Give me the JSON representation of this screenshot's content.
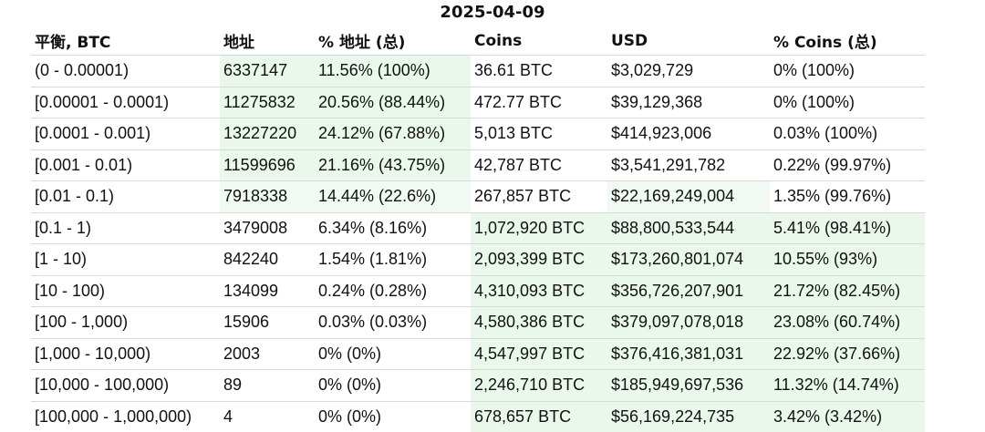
{
  "title": "2025-04-09",
  "headers": [
    "平衡, BTC",
    "地址",
    "% 地址 (总)",
    "Coins",
    "USD",
    "% Coins (总)"
  ],
  "rows": [
    [
      "(0 - 0.00001)",
      "6337147",
      "11.56% (100%)",
      "36.61 BTC",
      "$3,029,729",
      "0% (100%)"
    ],
    [
      "[0.00001 - 0.0001)",
      "11275832",
      "20.56% (88.44%)",
      "472.77 BTC",
      "$39,129,368",
      "0% (100%)"
    ],
    [
      "[0.0001 - 0.001)",
      "13227220",
      "24.12% (67.88%)",
      "5,013 BTC",
      "$414,923,006",
      "0.03% (100%)"
    ],
    [
      "[0.001 - 0.01)",
      "11599696",
      "21.16% (43.75%)",
      "42,787 BTC",
      "$3,541,291,782",
      "0.22% (99.97%)"
    ],
    [
      "[0.01 - 0.1)",
      "7918338",
      "14.44% (22.6%)",
      "267,857 BTC",
      "$22,169,249,004",
      "1.35% (99.76%)"
    ],
    [
      "[0.1 - 1)",
      "3479008",
      "6.34% (8.16%)",
      "1,072,920 BTC",
      "$88,800,533,544",
      "5.41% (98.41%)"
    ],
    [
      "[1 - 10)",
      "842240",
      "1.54% (1.81%)",
      "2,093,399 BTC",
      "$173,260,801,074",
      "10.55% (93%)"
    ],
    [
      "[10 - 100)",
      "134099",
      "0.24% (0.28%)",
      "4,310,093 BTC",
      "$356,726,207,901",
      "21.72% (82.45%)"
    ],
    [
      "[100 - 1,000)",
      "15906",
      "0.03% (0.03%)",
      "4,580,386 BTC",
      "$379,097,078,018",
      "23.08% (60.74%)"
    ],
    [
      "[1,000 - 10,000)",
      "2003",
      "0% (0%)",
      "4,547,997 BTC",
      "$376,416,381,031",
      "22.92% (37.66%)"
    ],
    [
      "[10,000 - 100,000)",
      "89",
      "0% (0%)",
      "2,246,710 BTC",
      "$185,949,697,536",
      "11.32% (14.74%)"
    ],
    [
      "[100,000 - 1,000,000)",
      "4",
      "0% (0%)",
      "678,657 BTC",
      "$56,169,224,735",
      "3.42% (3.42%)"
    ]
  ],
  "highlight_color": "#eaf8ec"
}
